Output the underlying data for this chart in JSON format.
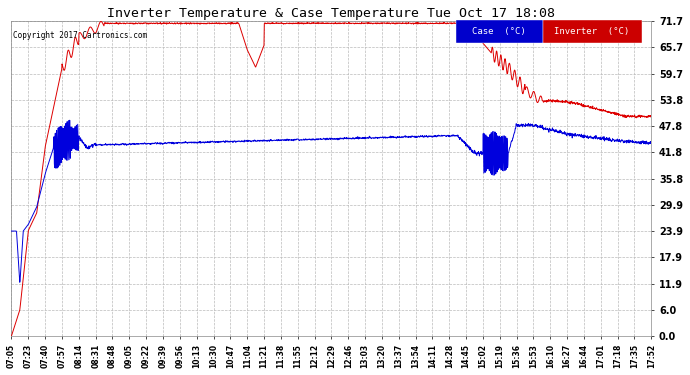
{
  "title": "Inverter Temperature & Case Temperature Tue Oct 17 18:08",
  "copyright": "Copyright 2017 Cartronics.com",
  "yticks": [
    0.0,
    6.0,
    11.9,
    17.9,
    23.9,
    29.9,
    35.8,
    41.8,
    47.8,
    53.8,
    59.7,
    65.7,
    71.7
  ],
  "ylim": [
    0.0,
    71.7
  ],
  "bg_color": "#ffffff",
  "grid_color": "#bbbbbb",
  "case_color": "#0000dd",
  "inverter_color": "#dd0000",
  "legend_case_bg": "#0000cc",
  "legend_inv_bg": "#cc0000",
  "xtick_labels": [
    "07:05",
    "07:23",
    "07:40",
    "07:57",
    "08:14",
    "08:31",
    "08:48",
    "09:05",
    "09:22",
    "09:39",
    "09:56",
    "10:13",
    "10:30",
    "10:47",
    "11:04",
    "11:21",
    "11:38",
    "11:55",
    "12:12",
    "12:29",
    "12:46",
    "13:03",
    "13:20",
    "13:37",
    "13:54",
    "14:11",
    "14:28",
    "14:45",
    "15:02",
    "15:19",
    "15:36",
    "15:53",
    "16:10",
    "16:27",
    "16:44",
    "17:01",
    "17:18",
    "17:35",
    "17:52"
  ]
}
